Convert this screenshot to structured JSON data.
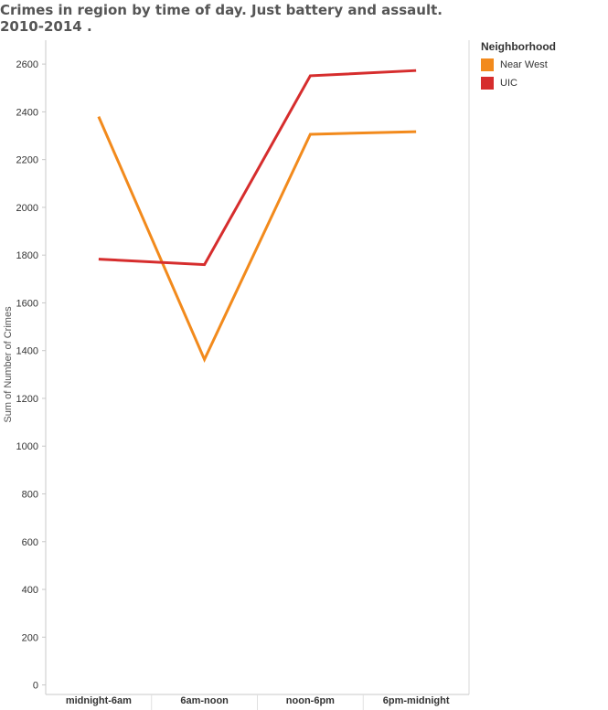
{
  "chart_data": {
    "type": "line",
    "title": "Crimes in region by time of day.  Just battery and assault.   2010-2014 .",
    "xlabel": "",
    "ylabel": "Sum of Number of Crimes",
    "categories": [
      "midnight-6am",
      "6am-noon",
      "noon-6pm",
      "6pm-midnight"
    ],
    "yticks": [
      0,
      200,
      400,
      600,
      800,
      1000,
      1200,
      1400,
      1600,
      1800,
      2000,
      2200,
      2400,
      2600
    ],
    "ylim": [
      -40,
      2700
    ],
    "grid": false,
    "legend_placement": "right",
    "legend_title": "Neighborhood",
    "series": [
      {
        "name": "Near West",
        "color": "#f28a1c",
        "values": [
          2380,
          1363,
          2306,
          2317
        ]
      },
      {
        "name": "UIC",
        "color": "#d62d2d",
        "values": [
          1783,
          1760,
          2551,
          2573
        ]
      }
    ]
  }
}
